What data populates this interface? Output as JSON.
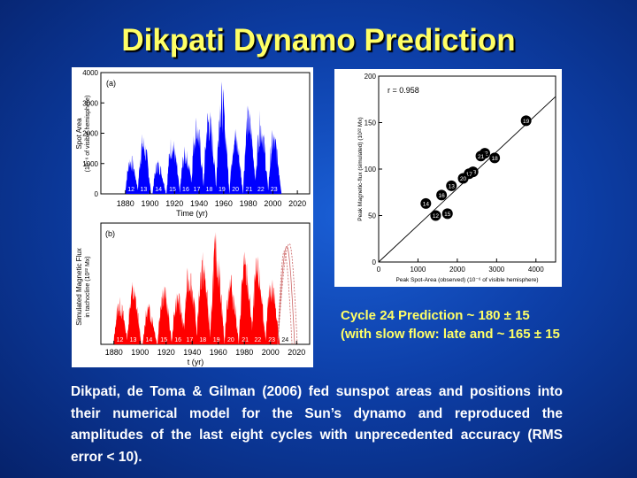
{
  "slide": {
    "title": "Dikpati Dynamo Prediction",
    "prediction_line1": "Cycle 24 Prediction ~ 180 ± 15",
    "prediction_line2": "(with slow flow: late and ~ 165 ± 15",
    "summary": "Dikpati, de Toma & Gilman (2006) fed sunspot areas and positions into their numerical model for the Sun’s dynamo and reproduced the amplitudes of the last eight cycles with unprecedented accuracy (RMS error < 10)."
  },
  "colors": {
    "title": "#ffff66",
    "observed": "#0000ff",
    "simulated": "#ff0000",
    "prediction": "#cc6666"
  },
  "chart_data": [
    {
      "type": "area",
      "panel_label": "(a)",
      "xlabel": "Time (yr)",
      "ylabel_line1": "Spot Area",
      "ylabel_line2": "(10⁻⁶ of visible hemisphere)",
      "xlim": [
        1860,
        2030
      ],
      "ylim": [
        0,
        4000
      ],
      "xticks": [
        1880,
        1900,
        1920,
        1940,
        1960,
        1980,
        2000,
        2020
      ],
      "yticks": [
        0,
        1000,
        2000,
        3000,
        4000
      ],
      "cycle_labels": [
        "12",
        "13",
        "14",
        "15",
        "16",
        "17",
        "18",
        "19",
        "20",
        "21",
        "22",
        "23"
      ],
      "series": [
        {
          "peak_year": [
            1883.9,
            1894.1,
            1906.2,
            1917.6,
            1928.4,
            1937.4,
            1947.5,
            1957.9,
            1968.9,
            1979.9,
            1989.6,
            2000.3
          ],
          "peak_value": [
            1350,
            2050,
            1200,
            2000,
            1600,
            2700,
            3000,
            3800,
            2300,
            3000,
            2800,
            2200
          ]
        }
      ]
    },
    {
      "type": "area",
      "panel_label": "(b)",
      "xlabel": "t (yr)",
      "ylabel_line1": "Simulated Magnetic Flux",
      "ylabel_line2": "in tachocline (10²² Mx)",
      "xlim": [
        1870,
        2030
      ],
      "xticks": [
        1880,
        1900,
        1920,
        1940,
        1960,
        1980,
        2000,
        2020
      ],
      "cycle_labels": [
        "12",
        "13",
        "14",
        "15",
        "16",
        "17",
        "18",
        "19",
        "20",
        "21",
        "22",
        "23",
        "24"
      ],
      "series": [
        {
          "peak_year": [
            1883.9,
            1894.1,
            1906.2,
            1917.6,
            1928.4,
            1937.4,
            1947.5,
            1957.9,
            1968.9,
            1979.9,
            1989.6,
            2000.3
          ],
          "peak_value": [
            52,
            70,
            46,
            70,
            60,
            92,
            102,
            122,
            80,
            102,
            96,
            78
          ]
        },
        {
          "peak_year": [
            2010.5,
            2012.5,
            2014.5
          ],
          "peak_value": [
            100,
            105,
            108
          ]
        }
      ]
    },
    {
      "type": "scatter",
      "annotation": "r = 0.958",
      "xlabel": "Peak Spot-Area (observed) (10⁻⁶ of visible hemisphere)",
      "ylabel": "Peak Magnetic-flux (simulated) (10²² Mx)",
      "xlim": [
        0,
        4500
      ],
      "ylim": [
        0,
        200
      ],
      "xticks": [
        0,
        1000,
        2000,
        3000,
        4000
      ],
      "yticks": [
        0,
        50,
        100,
        150,
        200
      ],
      "points": [
        {
          "label": "19",
          "x": 3750,
          "y": 152
        },
        {
          "label": "22",
          "x": 2700,
          "y": 117
        },
        {
          "label": "21",
          "x": 2600,
          "y": 114
        },
        {
          "label": "18",
          "x": 2950,
          "y": 112
        },
        {
          "label": "23",
          "x": 2400,
          "y": 97
        },
        {
          "label": "17",
          "x": 2300,
          "y": 95
        },
        {
          "label": "20",
          "x": 2150,
          "y": 90
        },
        {
          "label": "13",
          "x": 1850,
          "y": 82
        },
        {
          "label": "16",
          "x": 1600,
          "y": 72
        },
        {
          "label": "14",
          "x": 1200,
          "y": 63
        },
        {
          "label": "12",
          "x": 1450,
          "y": 50
        },
        {
          "label": "15",
          "x": 1750,
          "y": 52
        }
      ],
      "fit_line": {
        "x": [
          0,
          4500
        ],
        "y": [
          0,
          178
        ]
      }
    }
  ]
}
